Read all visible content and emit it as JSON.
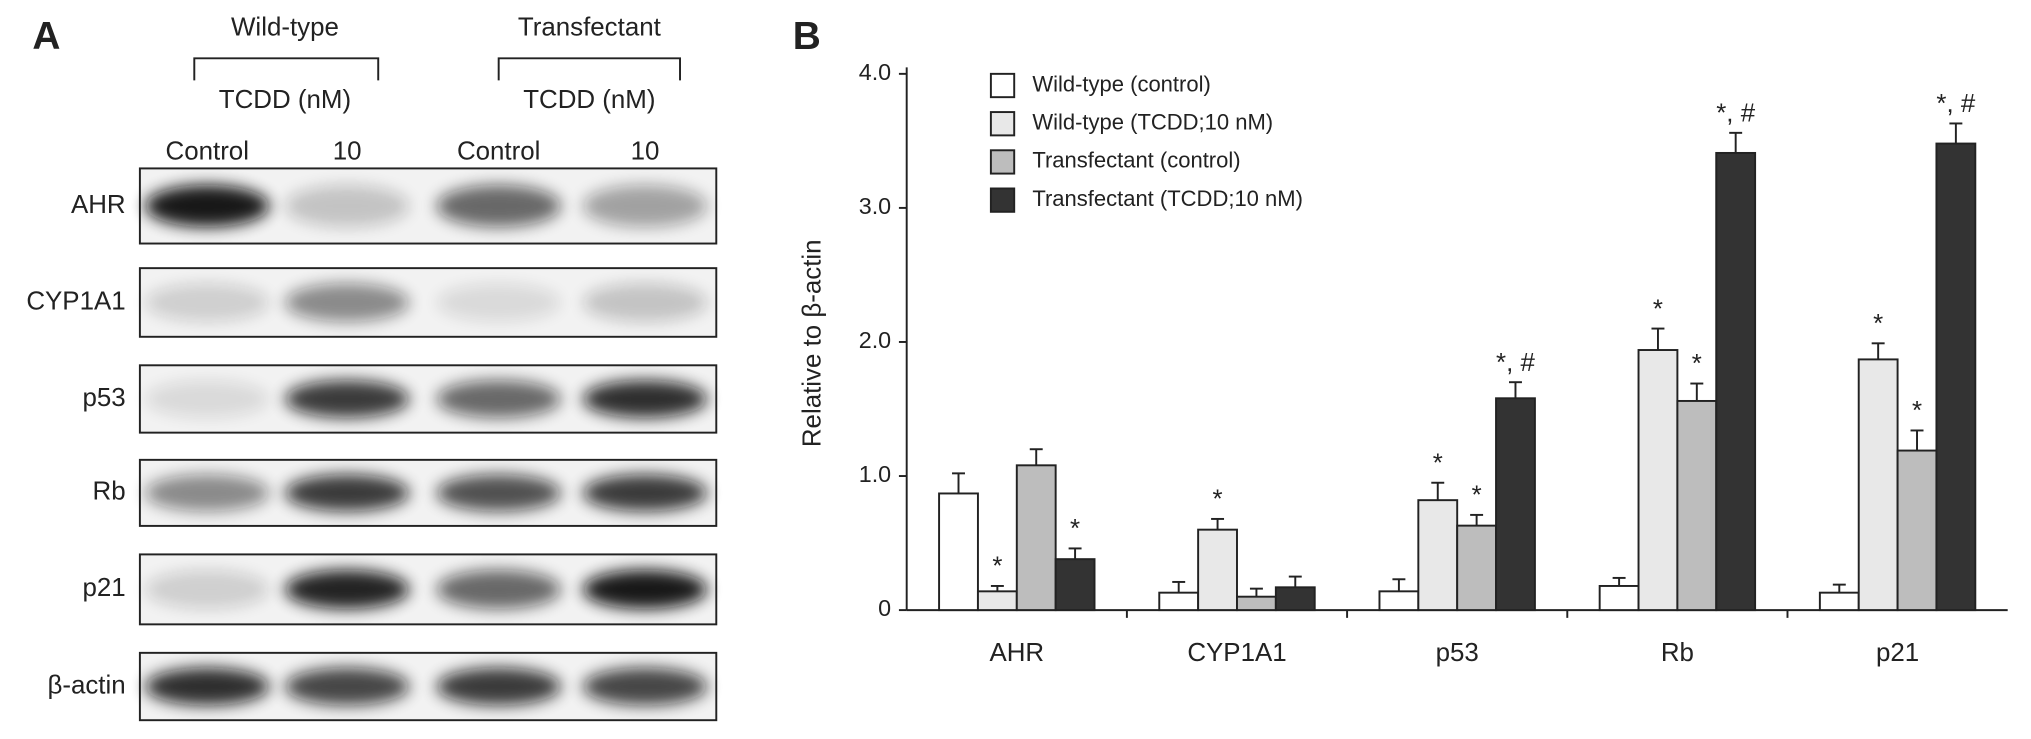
{
  "panel_a": {
    "label": "A",
    "groups": [
      {
        "name": "Wild-type",
        "treatment": "TCDD (nM)"
      },
      {
        "name": "Transfectant",
        "treatment": "TCDD (nM)"
      }
    ],
    "lanes": [
      "Control",
      "10",
      "Control",
      "10"
    ],
    "rows": [
      "AHR",
      "CYP1A1",
      "p53",
      "Rb",
      "p21",
      "β-actin"
    ]
  },
  "chart_data": {
    "type": "bar",
    "panel_label": "B",
    "y_label": "Relative to β-actin",
    "categories": [
      "AHR",
      "CYP1A1",
      "p53",
      "Rb",
      "p21"
    ],
    "series": [
      {
        "name": "Wild-type (control)",
        "color": "#ffffff",
        "values": [
          0.87,
          0.13,
          0.14,
          0.18,
          0.13
        ],
        "errors": [
          0.15,
          0.08,
          0.09,
          0.06,
          0.06
        ],
        "markers": [
          null,
          null,
          null,
          null,
          null
        ]
      },
      {
        "name": "Wild-type (TCDD;10 nM)",
        "color": "#e8e8e8",
        "values": [
          0.14,
          0.6,
          0.82,
          1.94,
          1.87
        ],
        "errors": [
          0.04,
          0.08,
          0.13,
          0.16,
          0.12
        ],
        "markers": [
          "*",
          "*",
          "*",
          "*",
          "*"
        ]
      },
      {
        "name": "Transfectant (control)",
        "color": "#bdbdbd",
        "values": [
          1.08,
          0.1,
          0.63,
          1.56,
          1.19
        ],
        "errors": [
          0.12,
          0.06,
          0.08,
          0.13,
          0.15
        ],
        "markers": [
          null,
          null,
          "*",
          "*",
          "*"
        ]
      },
      {
        "name": "Transfectant (TCDD;10 nM)",
        "color": "#333333",
        "values": [
          0.38,
          0.17,
          1.58,
          3.41,
          3.48
        ],
        "errors": [
          0.08,
          0.08,
          0.12,
          0.15,
          0.15
        ],
        "markers": [
          "*",
          null,
          "*, #",
          "*, #",
          "*, #"
        ]
      }
    ],
    "ylim": [
      0,
      4
    ],
    "yticks": [
      0,
      {
        "value": 1,
        "label": "1.0"
      },
      {
        "value": 2,
        "label": "2.0"
      },
      {
        "value": 3,
        "label": "3.0"
      },
      {
        "value": 4,
        "label": "4.0"
      }
    ],
    "legend": "top-left"
  }
}
